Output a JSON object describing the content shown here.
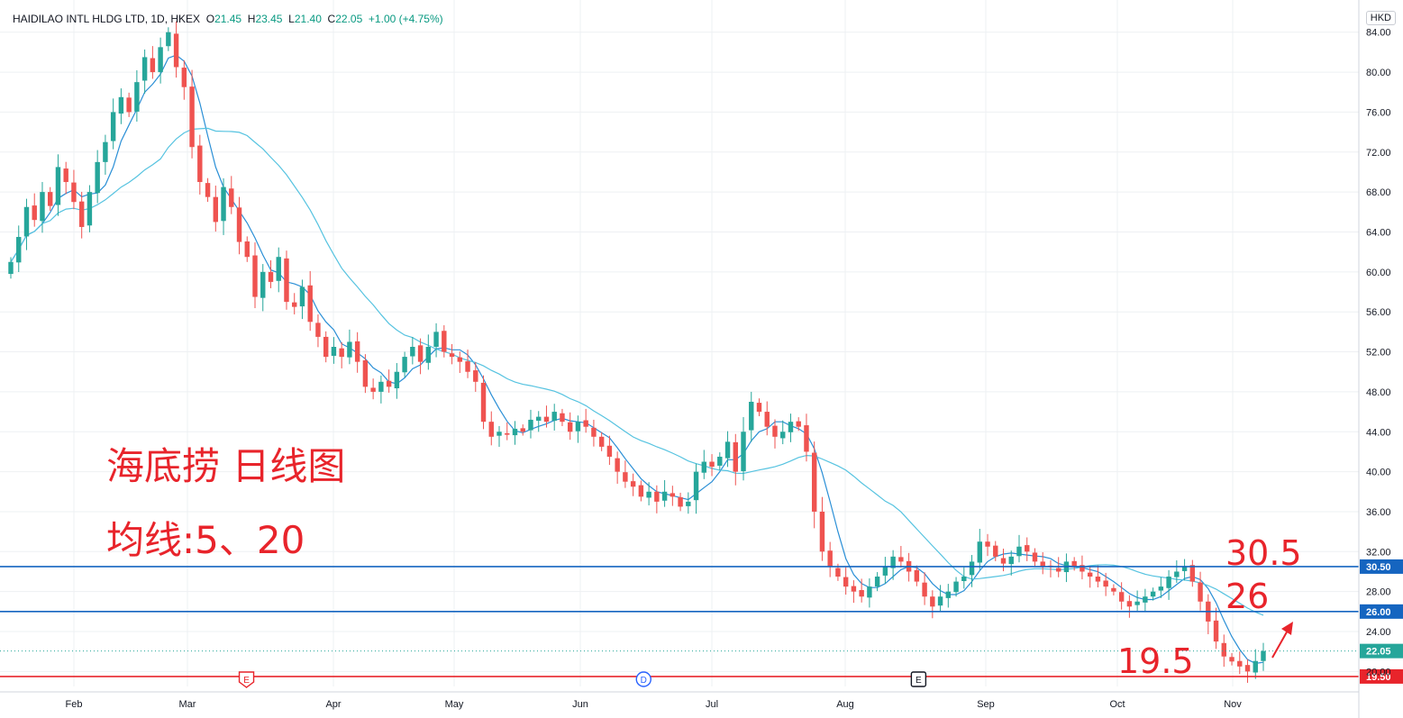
{
  "header": {
    "symbol": "HAIDILAO INTL HLDG LTD, 1D, HKEX",
    "o_label": "O",
    "o_value": "21.45",
    "h_label": "H",
    "h_value": "23.45",
    "l_label": "L",
    "l_value": "21.40",
    "c_label": "C",
    "c_value": "22.05",
    "change": "+1.00 (+4.75%)"
  },
  "currency": "HKD",
  "annotations": {
    "title": "海底捞 日线图",
    "ma_note": "均线:5、20",
    "level_high": "30.5",
    "level_mid": "26",
    "level_low": "19.5"
  },
  "colors": {
    "up": "#26a69a",
    "down": "#ef5350",
    "ma5": "#2a8fd6",
    "ma20": "#56c3e0",
    "level_line": "#1565c0",
    "support_line": "#e8242b",
    "annotation": "#e8242b"
  },
  "event_markers": [
    {
      "label": "E",
      "type": "earnings",
      "color": "#e8242b",
      "date": "2021-03-22"
    },
    {
      "label": "D",
      "type": "dividend",
      "color": "#2962ff",
      "date": "2021-06-21"
    },
    {
      "label": "E",
      "type": "earnings",
      "color": "#131722",
      "date": "2021-08-23"
    }
  ],
  "chart_data": {
    "type": "candlestick",
    "x_axis_months": [
      "Feb",
      "Mar",
      "Apr",
      "May",
      "Jun",
      "Jul",
      "Aug",
      "Sep",
      "Oct",
      "Nov"
    ],
    "y_ticks": [
      "84.00",
      "80.00",
      "76.00",
      "72.00",
      "68.00",
      "64.00",
      "60.00",
      "56.00",
      "52.00",
      "48.00",
      "44.00",
      "40.00",
      "36.00",
      "32.00",
      "28.00",
      "24.00",
      "20.00"
    ],
    "ylim": [
      18.5,
      86.5
    ],
    "horizontal_levels": [
      {
        "price": 30.5,
        "label": "30.50",
        "color": "#1565c0"
      },
      {
        "price": 26.0,
        "label": "26.00",
        "color": "#1565c0"
      },
      {
        "price": 19.5,
        "label": "19.50",
        "color": "#e8242b"
      }
    ],
    "last_price": {
      "price": 22.05,
      "label": "22.05"
    },
    "moving_averages": [
      {
        "period": 5
      },
      {
        "period": 20
      }
    ],
    "closes": [
      61.0,
      63.5,
      66.5,
      65.2,
      68.0,
      66.6,
      70.5,
      69.0,
      67.0,
      64.5,
      68.0,
      71.0,
      73.0,
      76.0,
      77.5,
      76.0,
      79.0,
      81.5,
      80.0,
      82.5,
      84.0,
      80.5,
      78.5,
      72.5,
      69.0,
      67.5,
      65.0,
      68.5,
      66.5,
      63.0,
      61.5,
      57.5,
      60.0,
      59.0,
      61.5,
      57.0,
      56.5,
      58.5,
      55.0,
      53.5,
      51.5,
      52.5,
      51.5,
      53.0,
      51.0,
      48.5,
      48.0,
      49.0,
      48.5,
      50.0,
      51.5,
      52.5,
      51.0,
      52.5,
      54.0,
      52.0,
      51.5,
      51.0,
      50.0,
      49.0,
      45.0,
      43.5,
      44.0,
      43.7,
      44.3,
      44.0,
      45.2,
      45.5,
      45.0,
      46.0,
      45.0,
      44.0,
      45.0,
      44.5,
      43.5,
      42.5,
      41.5,
      40.0,
      39.0,
      38.5,
      37.5,
      38.0,
      37.0,
      38.0,
      37.5,
      36.5,
      37.0,
      40.0,
      41.0,
      40.5,
      41.5,
      43.0,
      40.0,
      44.0,
      47.0,
      46.0,
      44.5,
      43.5,
      44.0,
      45.0,
      44.5,
      42.0,
      36.0,
      32.0,
      30.5,
      29.5,
      28.5,
      28.0,
      27.5,
      28.5,
      29.5,
      30.5,
      31.5,
      31.0,
      30.0,
      29.0,
      27.5,
      26.5,
      27.5,
      28.0,
      29.0,
      29.5,
      31.0,
      33.0,
      32.5,
      31.5,
      30.8,
      31.5,
      32.5,
      32.0,
      31.0,
      30.5,
      30.5,
      30.0,
      31.0,
      30.5,
      30.0,
      29.5,
      29.0,
      28.5,
      28.0,
      27.0,
      26.5,
      27.0,
      27.5,
      28.0,
      28.5,
      29.5,
      30.0,
      30.5,
      29.0,
      27.0,
      25.0,
      23.0,
      21.5,
      21.0,
      20.5,
      20.0,
      21.05,
      22.05
    ]
  }
}
